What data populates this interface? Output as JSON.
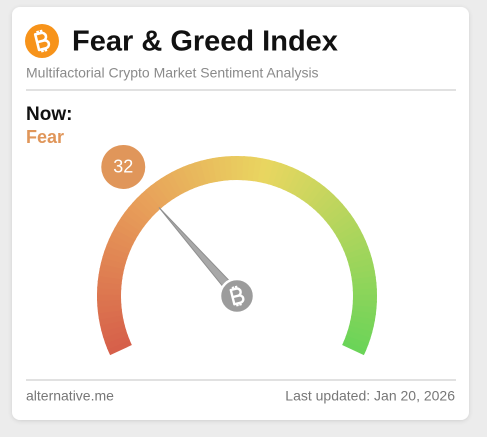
{
  "header": {
    "title": "Fear & Greed Index",
    "subtitle": "Multifactorial Crypto Market Sentiment Analysis"
  },
  "chart_data": {
    "type": "gauge",
    "label": "Now:",
    "classification": "Fear",
    "value": 32,
    "ylim": [
      0,
      100
    ]
  },
  "footer": {
    "source": "alternative.me",
    "updated": "Last updated: Jan 20, 2026"
  }
}
